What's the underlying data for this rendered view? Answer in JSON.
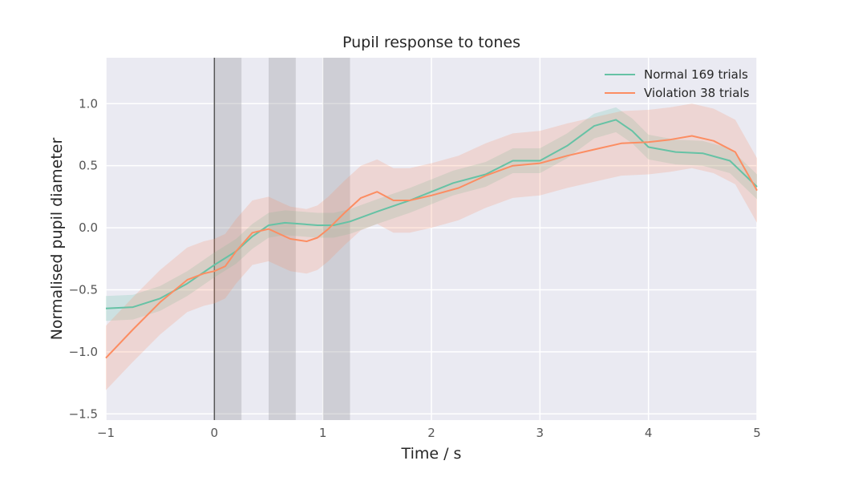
{
  "chart_data": {
    "type": "line",
    "title": "Pupil response to tones",
    "xlabel": "Time / s",
    "ylabel": "Normalised pupil diameter",
    "xlim": [
      -1,
      5
    ],
    "ylim": [
      -1.55,
      1.37
    ],
    "xticks": [
      -1,
      0,
      1,
      2,
      3,
      4,
      5
    ],
    "xtick_labels": [
      "−1",
      "0",
      "1",
      "2",
      "3",
      "4",
      "5"
    ],
    "yticks": [
      -1.5,
      -1.0,
      -0.5,
      0.0,
      0.5,
      1.0
    ],
    "ytick_labels": [
      "−1.5",
      "−1.0",
      "−0.5",
      "0.0",
      "0.5",
      "1.0"
    ],
    "grid": true,
    "legend_position": "top-right",
    "stimulus_onset_line": 0,
    "shaded_intervals": [
      [
        0,
        0.25
      ],
      [
        0.5,
        0.75
      ],
      [
        1.0,
        1.25
      ]
    ],
    "series": [
      {
        "name": "Normal 169 trials",
        "color": "#66c2a5",
        "x": [
          -1.0,
          -0.75,
          -0.5,
          -0.25,
          0.0,
          0.2,
          0.35,
          0.5,
          0.65,
          0.8,
          0.95,
          1.1,
          1.25,
          1.5,
          1.8,
          2.0,
          2.2,
          2.5,
          2.75,
          3.0,
          3.25,
          3.5,
          3.7,
          3.85,
          4.0,
          4.25,
          4.5,
          4.75,
          5.0
        ],
        "y": [
          -0.65,
          -0.64,
          -0.57,
          -0.45,
          -0.3,
          -0.19,
          -0.07,
          0.02,
          0.04,
          0.03,
          0.02,
          0.02,
          0.05,
          0.13,
          0.22,
          0.29,
          0.36,
          0.43,
          0.54,
          0.54,
          0.66,
          0.82,
          0.87,
          0.78,
          0.65,
          0.61,
          0.6,
          0.54,
          0.33
        ],
        "band": 0.1
      },
      {
        "name": "Violation 38 trials",
        "color": "#fc8d62",
        "x": [
          -1.0,
          -0.75,
          -0.5,
          -0.25,
          -0.1,
          0.0,
          0.1,
          0.2,
          0.35,
          0.5,
          0.6,
          0.7,
          0.85,
          0.95,
          1.05,
          1.2,
          1.35,
          1.5,
          1.65,
          1.8,
          2.0,
          2.25,
          2.5,
          2.75,
          3.0,
          3.25,
          3.5,
          3.75,
          4.0,
          4.2,
          4.4,
          4.6,
          4.8,
          5.0
        ],
        "y": [
          -1.05,
          -0.82,
          -0.6,
          -0.42,
          -0.37,
          -0.35,
          -0.31,
          -0.19,
          -0.04,
          -0.01,
          -0.05,
          -0.09,
          -0.11,
          -0.08,
          -0.01,
          0.12,
          0.24,
          0.29,
          0.22,
          0.22,
          0.26,
          0.32,
          0.42,
          0.5,
          0.52,
          0.58,
          0.63,
          0.68,
          0.69,
          0.71,
          0.74,
          0.7,
          0.61,
          0.3
        ],
        "band": 0.26
      }
    ]
  }
}
